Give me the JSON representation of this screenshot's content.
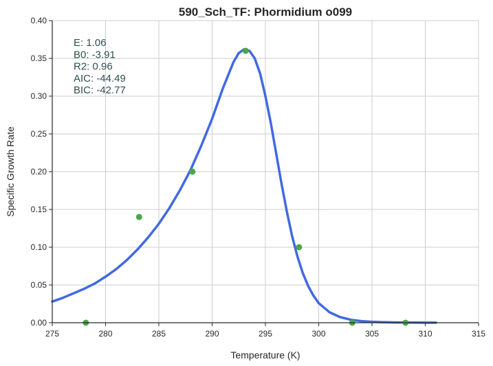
{
  "chart_data": {
    "type": "scatter",
    "title": "590_Sch_TF: Phormidium o099",
    "xlabel": "Temperature (K)",
    "ylabel": "Specific Growth Rate",
    "xlim": [
      275,
      315
    ],
    "ylim": [
      0.0,
      0.4
    ],
    "xticks": [
      275,
      280,
      285,
      290,
      295,
      300,
      305,
      310,
      315
    ],
    "yticks": [
      0.0,
      0.05,
      0.1,
      0.15,
      0.2,
      0.25,
      0.3,
      0.35,
      0.4
    ],
    "xtick_labels": [
      "275",
      "280",
      "285",
      "290",
      "295",
      "300",
      "305",
      "310",
      "315"
    ],
    "ytick_labels": [
      "0.00",
      "0.05",
      "0.10",
      "0.15",
      "0.20",
      "0.25",
      "0.30",
      "0.35",
      "0.40"
    ],
    "grid": true,
    "points": {
      "color": "#4aa64a",
      "x": [
        278.15,
        283.15,
        288.15,
        293.15,
        298.15,
        303.15,
        308.15
      ],
      "y": [
        0.0,
        0.14,
        0.2,
        0.36,
        0.1,
        0.0,
        0.0
      ]
    },
    "fit_line": {
      "color": "#4169e1",
      "x": [
        275,
        276,
        277,
        278,
        279,
        280,
        281,
        282,
        283,
        284,
        285,
        286,
        287,
        288,
        289,
        290,
        291,
        292,
        292.5,
        293,
        293.5,
        294,
        294.5,
        295,
        295.5,
        296,
        296.5,
        297,
        297.5,
        298,
        298.5,
        299,
        299.5,
        300,
        301,
        302,
        303,
        304,
        305,
        306,
        307,
        308,
        309,
        310,
        311
      ],
      "y": [
        0.028,
        0.033,
        0.039,
        0.045,
        0.052,
        0.061,
        0.071,
        0.083,
        0.097,
        0.113,
        0.131,
        0.152,
        0.176,
        0.203,
        0.235,
        0.27,
        0.31,
        0.345,
        0.357,
        0.362,
        0.36,
        0.35,
        0.33,
        0.3,
        0.265,
        0.225,
        0.185,
        0.148,
        0.115,
        0.088,
        0.066,
        0.049,
        0.036,
        0.026,
        0.014,
        0.0075,
        0.004,
        0.0022,
        0.0013,
        0.0008,
        0.0005,
        0.0003,
        0.0002,
        0.0001,
        0.0001
      ]
    },
    "stats": [
      {
        "label": "E:",
        "value": "1.06"
      },
      {
        "label": "B0:",
        "value": "-3.91"
      },
      {
        "label": "R2:",
        "value": "0.96"
      },
      {
        "label": "AIC:",
        "value": "-44.49"
      },
      {
        "label": "BIC:",
        "value": "-42.77"
      }
    ]
  }
}
